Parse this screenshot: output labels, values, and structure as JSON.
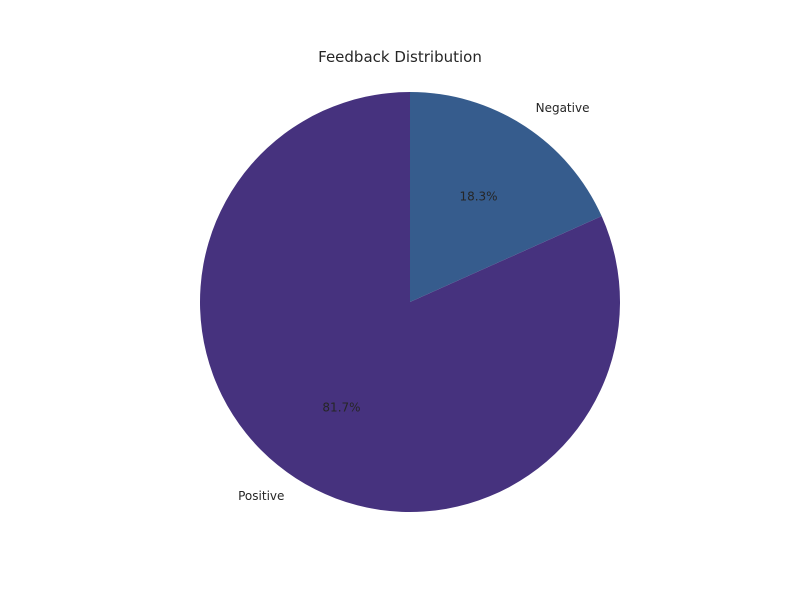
{
  "chart_data": {
    "type": "pie",
    "title": "Feedback Distribution",
    "slices": [
      {
        "label": "Negative",
        "value": 18.3,
        "pct_label": "18.3%",
        "color": "#365C8D"
      },
      {
        "label": "Positive",
        "value": 81.7,
        "pct_label": "81.7%",
        "color": "#46327E"
      }
    ],
    "start_angle_deg": 90,
    "direction": "clockwise",
    "legend": "none"
  }
}
